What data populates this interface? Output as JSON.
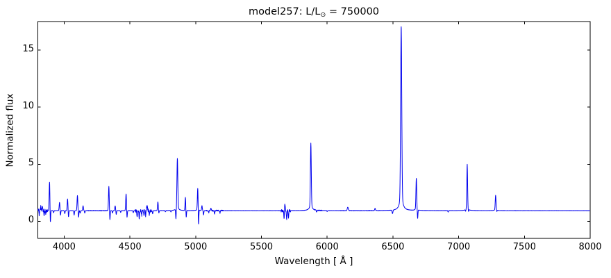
{
  "figure": {
    "title_prefix": "model257: L/L",
    "title_sub": "⊙",
    "title_suffix": " = 750000"
  },
  "chart_data": {
    "type": "line",
    "title": "model257: L/L⊙ = 750000",
    "xlabel": "Wavelength [ Å ]",
    "ylabel": "Normalized flux",
    "xlim": [
      3800,
      8000
    ],
    "ylim": [
      -1.5,
      17.5
    ],
    "xticks": [
      4000,
      4500,
      5000,
      5500,
      6000,
      6500,
      7000,
      7500,
      8000
    ],
    "yticks": [
      0,
      5,
      10,
      15
    ],
    "grid": false,
    "legend": "none",
    "line_color": "#0000ee",
    "axis_color": "#000000",
    "continuum_level": 0.93,
    "base_noise": 0.01,
    "emission_lines": [
      {
        "wavelength": 3822,
        "peak": 1.25,
        "sigma": 2.5
      },
      {
        "wavelength": 3835,
        "peak": 1.3,
        "sigma": 2.5
      },
      {
        "wavelength": 3889,
        "peak": 3.45,
        "sigma": 2.8
      },
      {
        "wavelength": 3965,
        "peak": 1.65,
        "sigma": 2.8
      },
      {
        "wavelength": 4026,
        "peak": 1.95,
        "sigma": 2.8
      },
      {
        "wavelength": 4101,
        "peak": 2.25,
        "sigma": 2.8
      },
      {
        "wavelength": 4144,
        "peak": 1.35,
        "sigma": 2.8
      },
      {
        "wavelength": 4340,
        "peak": 3.05,
        "sigma": 2.8
      },
      {
        "wavelength": 4388,
        "peak": 1.35,
        "sigma": 2.8
      },
      {
        "wavelength": 4471,
        "peak": 2.4,
        "sigma": 2.8
      },
      {
        "wavelength": 4630,
        "peak": 1.35,
        "sigma": 3.5
      },
      {
        "wavelength": 4713,
        "peak": 1.7,
        "sigma": 2.8
      },
      {
        "wavelength": 4861,
        "peak": 5.2,
        "sigma": 3.2,
        "wing_amp": 0.3,
        "wing_gamma": 12
      },
      {
        "wavelength": 4922,
        "peak": 2.1,
        "sigma": 2.6
      },
      {
        "wavelength": 5016,
        "peak": 2.75,
        "sigma": 2.8,
        "wing_amp": 0.15,
        "wing_gamma": 8
      },
      {
        "wavelength": 5048,
        "peak": 1.35,
        "sigma": 2.6
      },
      {
        "wavelength": 5116,
        "peak": 1.15,
        "sigma": 2.6
      },
      {
        "wavelength": 5679,
        "peak": 1.5,
        "sigma": 2.6
      },
      {
        "wavelength": 5876,
        "peak": 6.4,
        "sigma": 3.2,
        "wing_amp": 0.45,
        "wing_gamma": 13
      },
      {
        "wavelength": 6157,
        "peak": 1.22,
        "sigma": 4.0
      },
      {
        "wavelength": 6364,
        "peak": 1.12,
        "sigma": 3.0
      },
      {
        "wavelength": 6563,
        "peak": 15.8,
        "sigma": 4.2,
        "wing_amp": 1.25,
        "wing_gamma": 14
      },
      {
        "wavelength": 6678,
        "peak": 3.55,
        "sigma": 2.8,
        "wing_amp": 0.2,
        "wing_gamma": 9
      },
      {
        "wavelength": 7065,
        "peak": 4.7,
        "sigma": 2.8,
        "wing_amp": 0.28,
        "wing_gamma": 10
      },
      {
        "wavelength": 7281,
        "peak": 2.15,
        "sigma": 2.8,
        "wing_amp": 0.12,
        "wing_gamma": 8
      }
    ],
    "absorption_dips": [
      {
        "wavelength": 3810,
        "depth": 0.62,
        "sigma": 2.2
      },
      {
        "wavelength": 3848,
        "depth": 0.55,
        "sigma": 2.2
      },
      {
        "wavelength": 3860,
        "depth": 0.68,
        "sigma": 2.2
      },
      {
        "wavelength": 3895,
        "depth": -0.25,
        "sigma": 2.2
      },
      {
        "wavelength": 3920,
        "depth": 0.75,
        "sigma": 2.2
      },
      {
        "wavelength": 3972,
        "depth": 0.5,
        "sigma": 2.2
      },
      {
        "wavelength": 4005,
        "depth": 0.68,
        "sigma": 2.2
      },
      {
        "wavelength": 4033,
        "depth": 0.35,
        "sigma": 2.2
      },
      {
        "wavelength": 4076,
        "depth": 0.55,
        "sigma": 2.2
      },
      {
        "wavelength": 4110,
        "depth": 0.35,
        "sigma": 2.2
      },
      {
        "wavelength": 4122,
        "depth": 0.72,
        "sigma": 2.2
      },
      {
        "wavelength": 4157,
        "depth": 0.72,
        "sigma": 2.2
      },
      {
        "wavelength": 4348,
        "depth": 0.12,
        "sigma": 2.2
      },
      {
        "wavelength": 4368,
        "depth": 0.72,
        "sigma": 2.2
      },
      {
        "wavelength": 4396,
        "depth": 0.6,
        "sigma": 2.2
      },
      {
        "wavelength": 4430,
        "depth": 0.78,
        "sigma": 2.2
      },
      {
        "wavelength": 4478,
        "depth": 0.3,
        "sigma": 2.2
      },
      {
        "wavelength": 4526,
        "depth": 0.75,
        "sigma": 2.2
      },
      {
        "wavelength": 4555,
        "depth": 0.35,
        "sigma": 2.2
      },
      {
        "wavelength": 4571,
        "depth": 0.3,
        "sigma": 2.2
      },
      {
        "wavelength": 4590,
        "depth": 0.55,
        "sigma": 2.2
      },
      {
        "wavelength": 4607,
        "depth": 0.45,
        "sigma": 2.2
      },
      {
        "wavelength": 4620,
        "depth": 0.5,
        "sigma": 2.2
      },
      {
        "wavelength": 4648,
        "depth": 0.55,
        "sigma": 2.2
      },
      {
        "wavelength": 4673,
        "depth": 0.65,
        "sigma": 2.2
      },
      {
        "wavelength": 4720,
        "depth": 0.7,
        "sigma": 2.2
      },
      {
        "wavelength": 4770,
        "depth": 0.82,
        "sigma": 2.2
      },
      {
        "wavelength": 4812,
        "depth": 0.8,
        "sigma": 2.2
      },
      {
        "wavelength": 4850,
        "depth": 0.05,
        "sigma": 2.2
      },
      {
        "wavelength": 4928,
        "depth": 0.28,
        "sigma": 2.2
      },
      {
        "wavelength": 5022,
        "depth": -0.5,
        "sigma": 2.2
      },
      {
        "wavelength": 5060,
        "depth": 0.55,
        "sigma": 2.2
      },
      {
        "wavelength": 5100,
        "depth": 0.75,
        "sigma": 2.2
      },
      {
        "wavelength": 5144,
        "depth": 0.68,
        "sigma": 2.2
      },
      {
        "wavelength": 5185,
        "depth": 0.72,
        "sigma": 2.2
      },
      {
        "wavelength": 5672,
        "depth": 0.2,
        "sigma": 2.2
      },
      {
        "wavelength": 5692,
        "depth": 0.12,
        "sigma": 2.2
      },
      {
        "wavelength": 5706,
        "depth": 0.3,
        "sigma": 2.2
      },
      {
        "wavelength": 5920,
        "depth": 0.75,
        "sigma": 2.2
      },
      {
        "wavelength": 6000,
        "depth": 0.85,
        "sigma": 2.2
      },
      {
        "wavelength": 6497,
        "depth": 0.62,
        "sigma": 3.0
      },
      {
        "wavelength": 6688,
        "depth": 0.15,
        "sigma": 2.2
      },
      {
        "wavelength": 6920,
        "depth": 0.8,
        "sigma": 2.2
      },
      {
        "wavelength": 7053,
        "depth": 0.76,
        "sigma": 2.2
      },
      {
        "wavelength": 7075,
        "depth": 0.72,
        "sigma": 2.2
      },
      {
        "wavelength": 7290,
        "depth": 0.8,
        "sigma": 2.2
      }
    ],
    "noise_regions": [
      {
        "from": 3800,
        "to": 3875,
        "amplitude": 0.16
      },
      {
        "from": 4180,
        "to": 4330,
        "amplitude": 0.02
      },
      {
        "from": 4540,
        "to": 4665,
        "amplitude": 0.13
      },
      {
        "from": 5080,
        "to": 5210,
        "amplitude": 0.05
      },
      {
        "from": 5650,
        "to": 5722,
        "amplitude": 0.12
      },
      {
        "from": 5900,
        "to": 5960,
        "amplitude": 0.04
      },
      {
        "from": 6100,
        "to": 6400,
        "amplitude": 0.015
      }
    ]
  }
}
